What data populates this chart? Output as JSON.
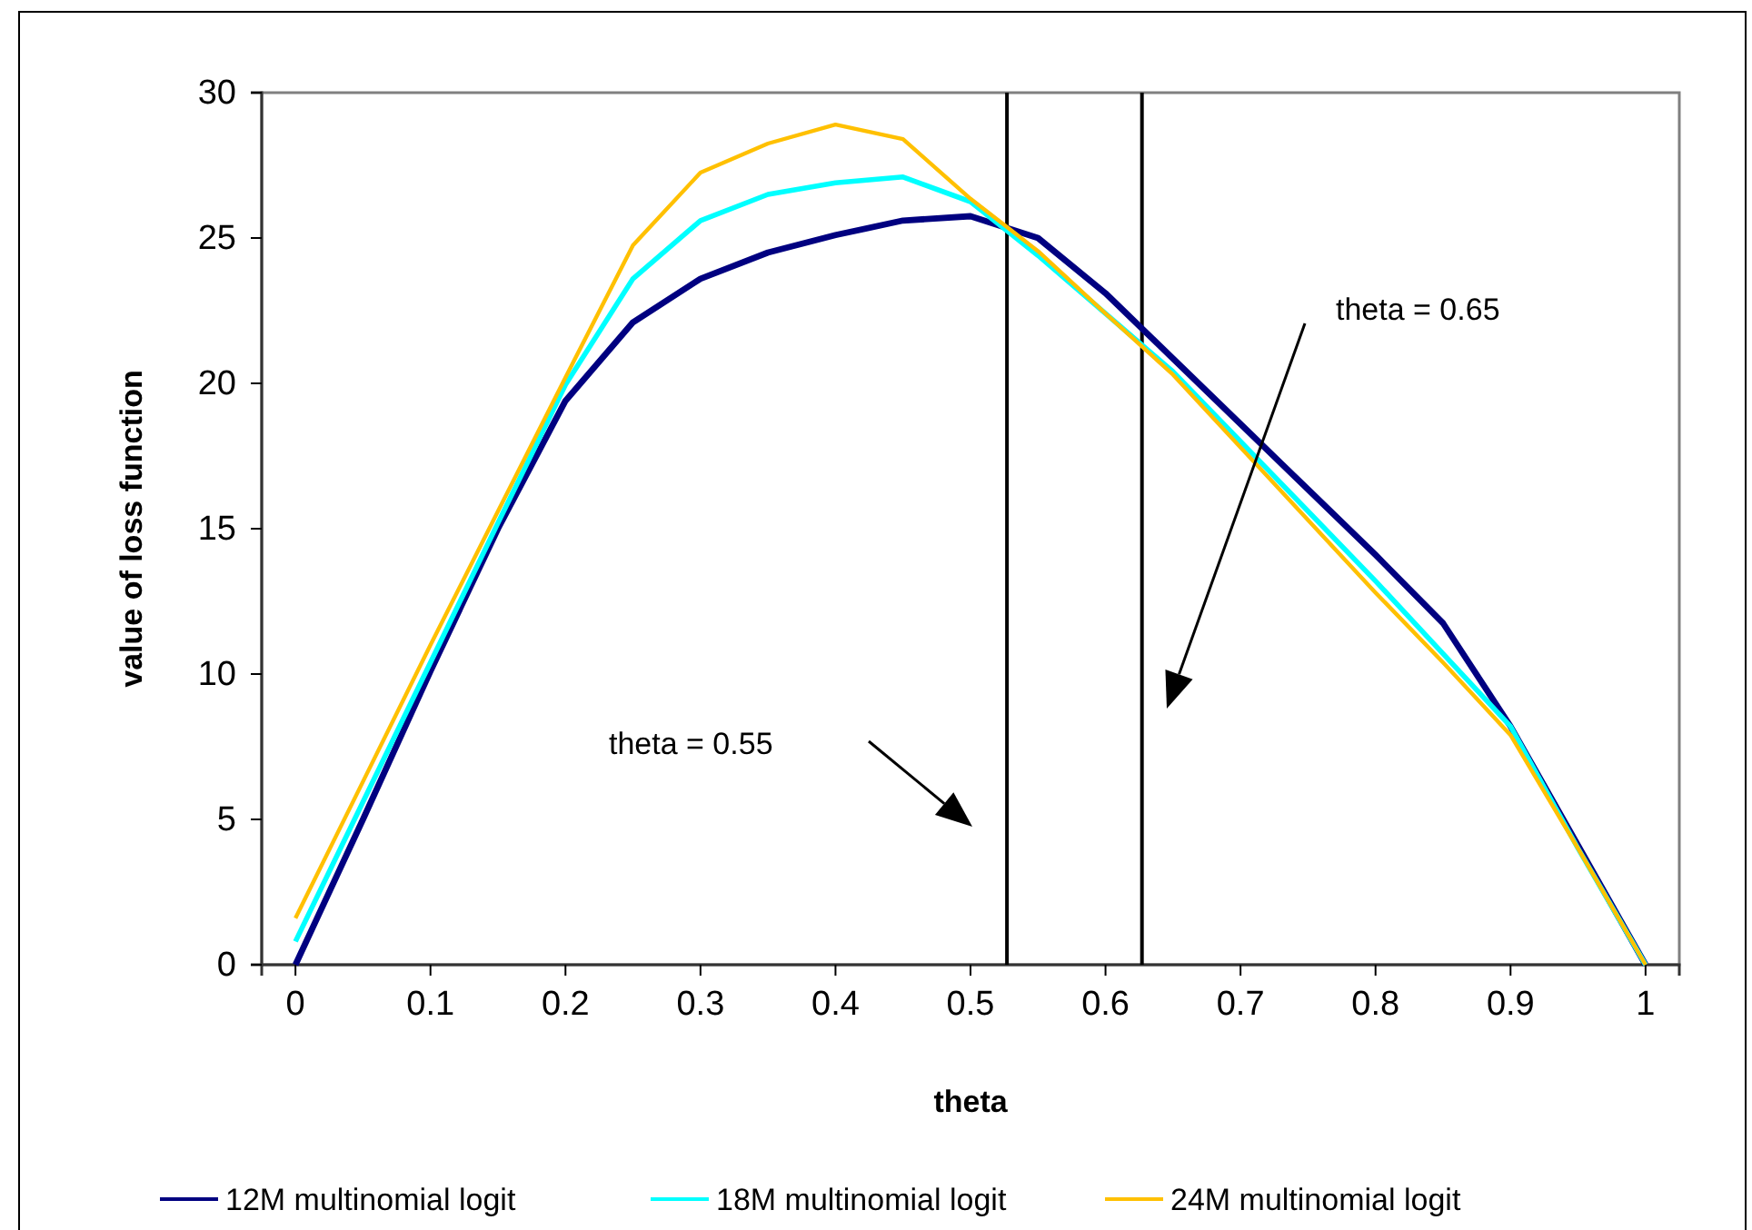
{
  "chart_data": {
    "type": "line",
    "xlabel": "theta",
    "ylabel": "value of loss function",
    "x": [
      0,
      0.05,
      0.1,
      0.15,
      0.2,
      0.25,
      0.3,
      0.35,
      0.4,
      0.45,
      0.5,
      0.55,
      0.6,
      0.65,
      0.7,
      0.75,
      0.8,
      0.85,
      0.9,
      0.95,
      1
    ],
    "series": [
      {
        "name": "12M multinomial logit",
        "color": "#000080",
        "values": [
          0,
          5.0,
          10.1,
          15.0,
          19.4,
          22.1,
          23.6,
          24.5,
          25.1,
          25.6,
          25.75,
          25.0,
          23.1,
          20.85,
          18.6,
          16.35,
          14.1,
          11.75,
          8.2,
          4.1,
          0
        ]
      },
      {
        "name": "18M multinomial logit",
        "color": "#00ffff",
        "values": [
          0.8,
          5.6,
          10.4,
          15.2,
          19.95,
          23.6,
          25.6,
          26.5,
          26.9,
          27.1,
          26.25,
          24.4,
          22.4,
          20.4,
          18.0,
          15.6,
          13.2,
          10.7,
          8.2,
          4.0,
          0
        ]
      },
      {
        "name": "24M multinomial logit",
        "color": "#ffc000",
        "values": [
          1.6,
          6.3,
          11.0,
          15.6,
          20.2,
          24.75,
          27.25,
          28.25,
          28.9,
          28.4,
          26.35,
          24.55,
          22.4,
          20.3,
          17.8,
          15.3,
          12.8,
          10.4,
          7.9,
          4.0,
          0
        ]
      }
    ],
    "xlim": [
      -0.025,
      1.025
    ],
    "xticks": [
      0,
      0.1,
      0.2,
      0.3,
      0.4,
      0.5,
      0.6,
      0.7,
      0.8,
      0.9,
      1
    ],
    "ylim": [
      0,
      30
    ],
    "yticks": [
      0,
      5,
      10,
      15,
      20,
      25,
      30
    ],
    "ref_lines": [
      {
        "axis": "x",
        "value": 0.527,
        "color": "#000000"
      },
      {
        "axis": "x",
        "value": 0.627,
        "color": "#000000"
      }
    ],
    "annotations": [
      "theta = 0.55",
      "theta = 0.65"
    ],
    "grid": false,
    "legend": "bottom",
    "marker": "none",
    "line_style": "solid"
  }
}
